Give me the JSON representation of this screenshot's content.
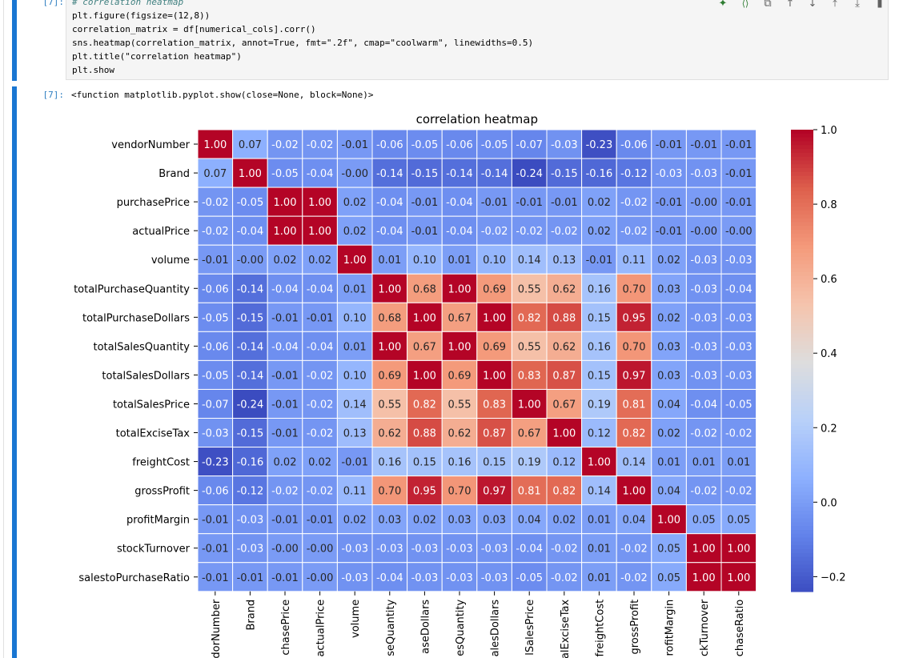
{
  "cell_input": {
    "prompt": "[7]:",
    "lines": [
      "# correlation heatmap",
      "plt.figure(figsize=(12,8))",
      "correlation_matrix = df[numerical_cols].corr()",
      "sns.heatmap(correlation_matrix, annot=True, fmt=\".2f\", cmap=\"coolwarm\", linewidths=0.5)",
      "plt.title(\"correlation heatmap\")",
      "plt.show"
    ]
  },
  "toolbar": {
    "icons": [
      "sparkle-icon",
      "code-brackets-icon",
      "duplicate-icon",
      "arrow-up-icon",
      "arrow-down-icon",
      "insert-above-icon",
      "insert-below-icon",
      "delete-icon"
    ],
    "glyphs": [
      "✦",
      "⟨⟩",
      "⧉",
      "↑",
      "↓",
      "⤒",
      "⤓",
      "▮"
    ]
  },
  "cell_output": {
    "prompt": "[7]:",
    "text": "<function matplotlib.pyplot.show(close=None, block=None)>"
  },
  "chart_data": {
    "type": "heatmap",
    "title": "correlation heatmap",
    "colormap": "coolwarm",
    "vmin": -0.24,
    "vmax": 1.0,
    "colorbar_ticks": [
      "1.0",
      "0.8",
      "0.6",
      "0.4",
      "0.2",
      "0.0",
      "−0.2"
    ],
    "colorbar_tick_values": [
      1.0,
      0.8,
      0.6,
      0.4,
      0.2,
      0.0,
      -0.2
    ],
    "row_labels": [
      "vendorNumber",
      "Brand",
      "purchasePrice",
      "actualPrice",
      "volume",
      "totalPurchaseQuantity",
      "totalPurchaseDollars",
      "totalSalesQuantity",
      "totalSalesDollars",
      "totalSalesPrice",
      "totalExciseTax",
      "freightCost",
      "grossProfit",
      "profitMargin",
      "stockTurnover",
      "salestoPurchaseRatio"
    ],
    "col_labels": [
      "dorNumber",
      "Brand",
      "chasePrice",
      "actualPrice",
      "volume",
      "seQuantity",
      "aseDollars",
      "esQuantity",
      "alesDollars",
      "lSalesPrice",
      "alExciseTax",
      "freightCost",
      "grossProfit",
      "rofitMargin",
      "ckTurnover",
      "chaseRatio"
    ],
    "matrix": [
      [
        1.0,
        0.07,
        -0.02,
        -0.02,
        -0.01,
        -0.06,
        -0.05,
        -0.06,
        -0.05,
        -0.07,
        -0.03,
        -0.23,
        -0.06,
        -0.01,
        -0.01,
        -0.01
      ],
      [
        0.07,
        1.0,
        -0.05,
        -0.04,
        -0.0,
        -0.14,
        -0.15,
        -0.14,
        -0.14,
        -0.24,
        -0.15,
        -0.16,
        -0.12,
        -0.03,
        -0.03,
        -0.01
      ],
      [
        -0.02,
        -0.05,
        1.0,
        1.0,
        0.02,
        -0.04,
        -0.01,
        -0.04,
        -0.01,
        -0.01,
        -0.01,
        0.02,
        -0.02,
        -0.01,
        -0.0,
        -0.01
      ],
      [
        -0.02,
        -0.04,
        1.0,
        1.0,
        0.02,
        -0.04,
        -0.01,
        -0.04,
        -0.02,
        -0.02,
        -0.02,
        0.02,
        -0.02,
        -0.01,
        -0.0,
        -0.0
      ],
      [
        -0.01,
        -0.0,
        0.02,
        0.02,
        1.0,
        0.01,
        0.1,
        0.01,
        0.1,
        0.14,
        0.13,
        -0.01,
        0.11,
        0.02,
        -0.03,
        -0.03
      ],
      [
        -0.06,
        -0.14,
        -0.04,
        -0.04,
        0.01,
        1.0,
        0.68,
        1.0,
        0.69,
        0.55,
        0.62,
        0.16,
        0.7,
        0.03,
        -0.03,
        -0.04
      ],
      [
        -0.05,
        -0.15,
        -0.01,
        -0.01,
        0.1,
        0.68,
        1.0,
        0.67,
        1.0,
        0.82,
        0.88,
        0.15,
        0.95,
        0.02,
        -0.03,
        -0.03
      ],
      [
        -0.06,
        -0.14,
        -0.04,
        -0.04,
        0.01,
        1.0,
        0.67,
        1.0,
        0.69,
        0.55,
        0.62,
        0.16,
        0.7,
        0.03,
        -0.03,
        -0.03
      ],
      [
        -0.05,
        -0.14,
        -0.01,
        -0.02,
        0.1,
        0.69,
        1.0,
        0.69,
        1.0,
        0.83,
        0.87,
        0.15,
        0.97,
        0.03,
        -0.03,
        -0.03
      ],
      [
        -0.07,
        -0.24,
        -0.01,
        -0.02,
        0.14,
        0.55,
        0.82,
        0.55,
        0.83,
        1.0,
        0.67,
        0.19,
        0.81,
        0.04,
        -0.04,
        -0.05
      ],
      [
        -0.03,
        -0.15,
        -0.01,
        -0.02,
        0.13,
        0.62,
        0.88,
        0.62,
        0.87,
        0.67,
        1.0,
        0.12,
        0.82,
        0.02,
        -0.02,
        -0.02
      ],
      [
        -0.23,
        -0.16,
        0.02,
        0.02,
        -0.01,
        0.16,
        0.15,
        0.16,
        0.15,
        0.19,
        0.12,
        1.0,
        0.14,
        0.01,
        0.01,
        0.01
      ],
      [
        -0.06,
        -0.12,
        -0.02,
        -0.02,
        0.11,
        0.7,
        0.95,
        0.7,
        0.97,
        0.81,
        0.82,
        0.14,
        1.0,
        0.04,
        -0.02,
        -0.02
      ],
      [
        -0.01,
        -0.03,
        -0.01,
        -0.01,
        0.02,
        0.03,
        0.02,
        0.03,
        0.03,
        0.04,
        0.02,
        0.01,
        0.04,
        1.0,
        0.05,
        0.05
      ],
      [
        -0.01,
        -0.03,
        -0.0,
        -0.0,
        -0.03,
        -0.03,
        -0.03,
        -0.03,
        -0.03,
        -0.04,
        -0.02,
        0.01,
        -0.02,
        0.05,
        1.0,
        1.0
      ],
      [
        -0.01,
        -0.01,
        -0.01,
        -0.0,
        -0.03,
        -0.04,
        -0.03,
        -0.03,
        -0.03,
        -0.05,
        -0.02,
        0.01,
        -0.02,
        0.05,
        1.0,
        1.0
      ]
    ]
  }
}
